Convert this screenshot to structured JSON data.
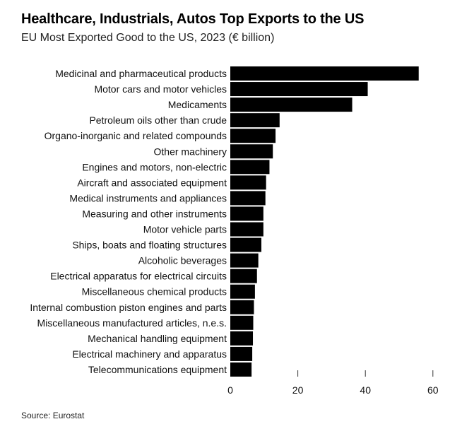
{
  "header": {
    "title": "Healthcare, Industrials, Autos Top Exports to the US",
    "subtitle": "EU Most Exported Good to the US, 2023 (€ billion)"
  },
  "footer": {
    "source": "Source: Eurostat"
  },
  "chart_data": {
    "type": "bar",
    "orientation": "horizontal",
    "title": "Healthcare, Industrials, Autos Top Exports to the US",
    "subtitle": "EU Most Exported Good to the US, 2023 (€ billion)",
    "xlabel": "",
    "ylabel": "",
    "xlim": [
      0,
      60
    ],
    "xticks": [
      0,
      20,
      40,
      60
    ],
    "grid": false,
    "bar_color": "#000000",
    "categories": [
      "Medicinal and pharmaceutical products",
      "Motor cars and motor vehicles",
      "Medicaments",
      "Petroleum oils other than crude",
      "Organo-inorganic and related compounds",
      "Other machinery",
      "Engines and motors, non-electric",
      "Aircraft and associated equipment",
      "Medical instruments and appliances",
      "Measuring and other instruments",
      "Motor vehicle parts",
      "Ships, boats and floating structures",
      "Alcoholic beverages",
      "Electrical apparatus for electrical circuits",
      "Miscellaneous chemical products",
      "Internal combustion piston engines and parts",
      "Miscellaneous manufactured articles, n.e.s.",
      "Mechanical handling equipment",
      "Electrical machinery and apparatus",
      "Telecommunications equipment"
    ],
    "values": [
      55.8,
      40.7,
      36.1,
      14.6,
      13.4,
      12.6,
      11.6,
      10.6,
      10.4,
      9.8,
      9.8,
      9.2,
      8.3,
      7.9,
      7.3,
      7.0,
      6.8,
      6.7,
      6.5,
      6.3
    ]
  }
}
